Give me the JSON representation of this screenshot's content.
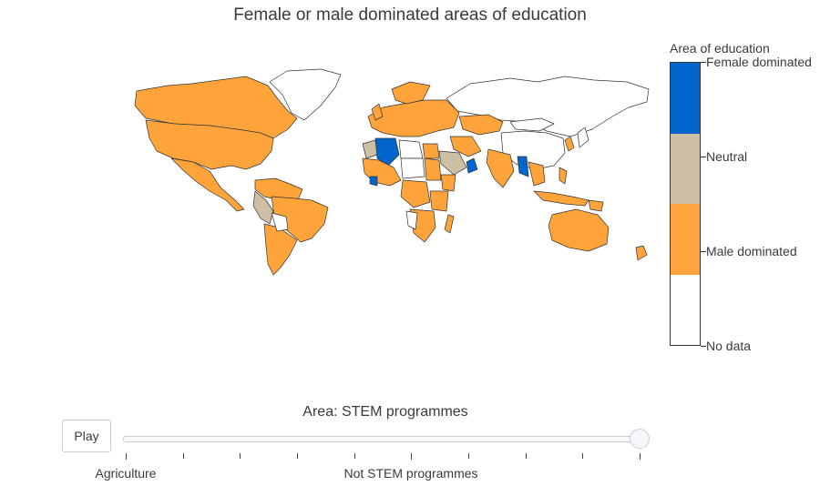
{
  "title": "Female or male dominated areas of education",
  "legend": {
    "title": "Area of education",
    "items": [
      {
        "label": "Female dominated",
        "color": "#0066cc"
      },
      {
        "label": "Neutral",
        "color": "#cdbfa3"
      },
      {
        "label": "Male dominated",
        "color": "#ffa43b"
      },
      {
        "label": "No data",
        "color": "#ffffff"
      }
    ]
  },
  "colors": {
    "border": "#333333"
  },
  "slider": {
    "current_label": "Area: STEM programmes",
    "play_label": "Play",
    "step_labels": [
      "Agriculture",
      "Not STEM programmes"
    ],
    "value": "STEM programmes",
    "step_count": 10
  }
}
